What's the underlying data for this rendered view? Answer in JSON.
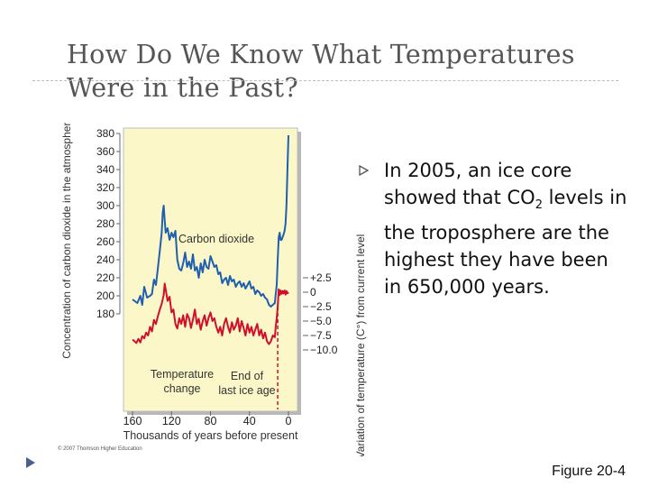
{
  "slide": {
    "title_lines": [
      "How Do We Know What Temperatures",
      "Were in the Past?"
    ],
    "bullets": [
      {
        "text_before": "In 2005, an ice core showed that CO",
        "subscript": "2",
        "text_after": " levels in the troposphere are the highest they have been in 650,000 years."
      }
    ],
    "caption": "Figure 20-4",
    "colors": {
      "co2": "#1f5fb0",
      "temp": "#d0102a",
      "chart_bg": "#fbf7c9",
      "title": "#555555"
    },
    "icons": {
      "bullet": "triangle-right-icon",
      "nav": "triangle-right-icon"
    }
  },
  "chart_data": {
    "type": "line",
    "xlabel": "Thousands of years before present",
    "ylabel_left": "Concentration of carbon dioxide in the atmosphere (ppm)",
    "ylabel_right": "Variation of temperature (C°) from current level",
    "x_ticks": [
      160,
      120,
      80,
      40,
      0
    ],
    "x_tick_labels": [
      "160",
      "120",
      "80",
      "40",
      "0"
    ],
    "xlim": [
      160,
      0
    ],
    "left_ticks": [
      180,
      200,
      220,
      240,
      260,
      280,
      300,
      320,
      340,
      360,
      380
    ],
    "left_tick_labels": [
      "180",
      "200",
      "220",
      "240",
      "260",
      "280",
      "300",
      "320",
      "340",
      "360",
      "380"
    ],
    "ylim_left": [
      100,
      385
    ],
    "right_ticks": [
      2.5,
      0,
      -2.5,
      -5,
      -7.5,
      -10
    ],
    "right_tick_labels": [
      "+2.5",
      "0",
      "−2.5",
      "−5.0",
      "−7.5",
      "−10.0"
    ],
    "annotations": [
      "Carbon dioxide",
      "Temperature change",
      "End of last ice age"
    ],
    "copyright": "© 2007 Thomson Higher Education",
    "series": [
      {
        "name": "Carbon dioxide",
        "x": [
          160,
          155,
          152,
          150,
          148,
          145,
          142,
          140,
          138,
          136,
          134,
          132,
          130,
          129,
          128,
          127,
          126,
          124,
          122,
          120,
          118,
          116,
          114,
          112,
          110,
          108,
          106,
          104,
          102,
          100,
          98,
          96,
          94,
          92,
          90,
          88,
          86,
          84,
          82,
          80,
          78,
          76,
          74,
          72,
          70,
          68,
          66,
          64,
          62,
          60,
          58,
          56,
          54,
          52,
          50,
          48,
          46,
          44,
          42,
          40,
          38,
          36,
          34,
          32,
          30,
          28,
          26,
          24,
          22,
          20,
          18,
          16,
          14,
          13,
          12,
          11,
          10,
          9,
          8,
          7,
          6,
          5,
          4,
          3,
          2,
          1,
          0
        ],
        "values": [
          196,
          192,
          200,
          190,
          210,
          198,
          200,
          202,
          218,
          212,
          230,
          250,
          270,
          292,
          300,
          284,
          270,
          275,
          262,
          270,
          265,
          272,
          240,
          230,
          228,
          236,
          248,
          232,
          238,
          230,
          246,
          228,
          232,
          220,
          236,
          226,
          240,
          232,
          230,
          244,
          238,
          232,
          234,
          224,
          226,
          214,
          218,
          220,
          212,
          222,
          216,
          218,
          210,
          214,
          216,
          210,
          214,
          208,
          212,
          216,
          208,
          210,
          202,
          206,
          204,
          200,
          202,
          198,
          196,
          190,
          188,
          190,
          192,
          202,
          212,
          240,
          265,
          270,
          262,
          262,
          265,
          268,
          272,
          280,
          300,
          340,
          378
        ]
      },
      {
        "name": "Temperature change",
        "x": [
          160,
          156,
          154,
          152,
          150,
          148,
          146,
          144,
          142,
          140,
          138,
          136,
          134,
          132,
          130,
          128,
          127,
          126,
          124,
          122,
          120,
          118,
          116,
          114,
          112,
          110,
          108,
          106,
          104,
          102,
          100,
          98,
          96,
          94,
          92,
          90,
          88,
          86,
          84,
          82,
          80,
          78,
          76,
          74,
          72,
          70,
          68,
          66,
          64,
          62,
          60,
          58,
          56,
          54,
          52,
          50,
          48,
          46,
          44,
          42,
          40,
          38,
          36,
          34,
          32,
          30,
          28,
          26,
          24,
          22,
          20,
          18,
          16,
          14,
          13,
          12,
          11,
          10,
          9,
          8,
          7,
          6,
          5,
          4,
          3,
          2,
          1,
          0
        ],
        "values": [
          -8.2,
          -8.8,
          -8.1,
          -8.7,
          -7.6,
          -8.0,
          -7.0,
          -7.5,
          -6.0,
          -6.8,
          -4.8,
          -5.5,
          -4.2,
          -3.0,
          -2.0,
          -0.5,
          1.5,
          0.5,
          -1.5,
          -0.8,
          -3.5,
          -3.0,
          -5.5,
          -6.3,
          -4.5,
          -5.5,
          -4.0,
          -6.0,
          -3.8,
          -4.5,
          -6.2,
          -4.8,
          -3.0,
          -5.5,
          -4.6,
          -6.5,
          -5.0,
          -4.0,
          -5.8,
          -4.5,
          -3.5,
          -5.0,
          -4.5,
          -6.0,
          -7.0,
          -6.0,
          -7.5,
          -5.5,
          -4.5,
          -6.0,
          -7.0,
          -5.2,
          -6.5,
          -5.8,
          -4.5,
          -6.8,
          -5.0,
          -6.2,
          -7.5,
          -5.5,
          -7.0,
          -6.0,
          -7.5,
          -6.5,
          -5.5,
          -7.5,
          -6.5,
          -8.0,
          -7.0,
          -8.5,
          -9.0,
          -8.5,
          -7.5,
          -7.8,
          -6.0,
          -4.5,
          -2.5,
          0.5,
          -0.5,
          0.3,
          -0.3,
          0.2,
          -0.2,
          0.3,
          -0.4,
          0.2,
          -0.2,
          0.0
        ]
      }
    ]
  }
}
